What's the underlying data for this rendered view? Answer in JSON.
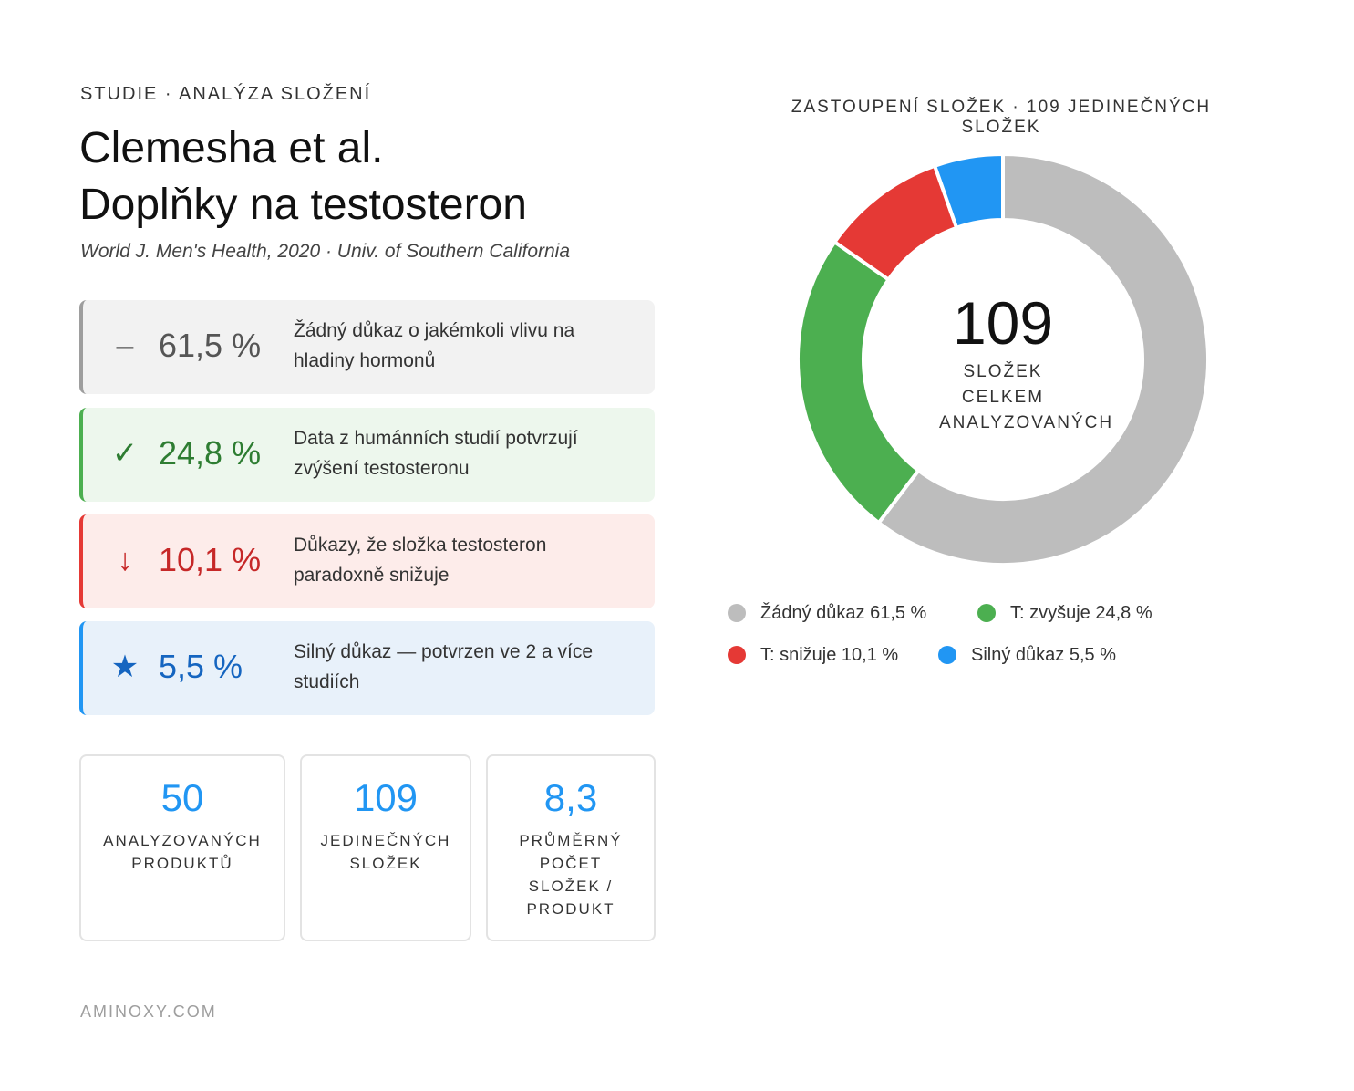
{
  "header": {
    "eyebrow": "STUDIE · ANALÝZA SLOŽENÍ",
    "title_line1": "Clemesha et al.",
    "title_line2": "Doplňky na testosteron",
    "subtitle": "World J. Men's Health, 2020 · Univ. of Southern California"
  },
  "cards": [
    {
      "icon": "–",
      "icon_name": "minus-icon",
      "pct": "61,5 %",
      "desc": "Žádný důkaz o jakémkoli vlivu na hladiny hormonů",
      "color": "#9e9e9e"
    },
    {
      "icon": "✓",
      "icon_name": "check-icon",
      "pct": "24,8 %",
      "desc": "Data z humánních studií potvrzují zvýšení testosteronu",
      "color": "#4caf50"
    },
    {
      "icon": "↓",
      "icon_name": "arrow-down-icon",
      "pct": "10,1 %",
      "desc": "Důkazy, že složka testosteron paradoxně snižuje",
      "color": "#e53935"
    },
    {
      "icon": "★",
      "icon_name": "star-icon",
      "pct": "5,5 %",
      "desc": "Silný důkaz — potvrzen ve 2 a více studiích",
      "color": "#2196f3"
    }
  ],
  "stats": [
    {
      "value": "50",
      "label": "ANALYZOVANÝCH PRODUKTŮ"
    },
    {
      "value": "109",
      "label": "JEDINEČNÝCH SLOŽEK"
    },
    {
      "value": "8,3",
      "label": "PRŮMĚRNÝ POČET SLOŽEK / PRODUKT"
    }
  ],
  "footer": "AMINOXY.COM",
  "chart_data": {
    "type": "pie",
    "donut": true,
    "title": "ZASTOUPENÍ SLOŽEK · 109 JEDINEČNÝCH SLOŽEK",
    "center_value": "109",
    "center_label": "SLOŽEK CELKEM ANALYZOVANÝCH",
    "legend_position": "bottom",
    "slices": [
      {
        "label": "Žádný důkaz",
        "value": 61.5,
        "display": "Žádný důkaz 61,5 %",
        "color": "#bdbdbd"
      },
      {
        "label": "T: zvyšuje",
        "value": 24.8,
        "display": "T: zvyšuje 24,8 %",
        "color": "#4caf50"
      },
      {
        "label": "T: snižuje",
        "value": 10.1,
        "display": "T: snižuje 10,1 %",
        "color": "#e53935"
      },
      {
        "label": "Silný důkaz",
        "value": 5.5,
        "display": "Silný důkaz 5,5 %",
        "color": "#2196f3"
      }
    ]
  }
}
